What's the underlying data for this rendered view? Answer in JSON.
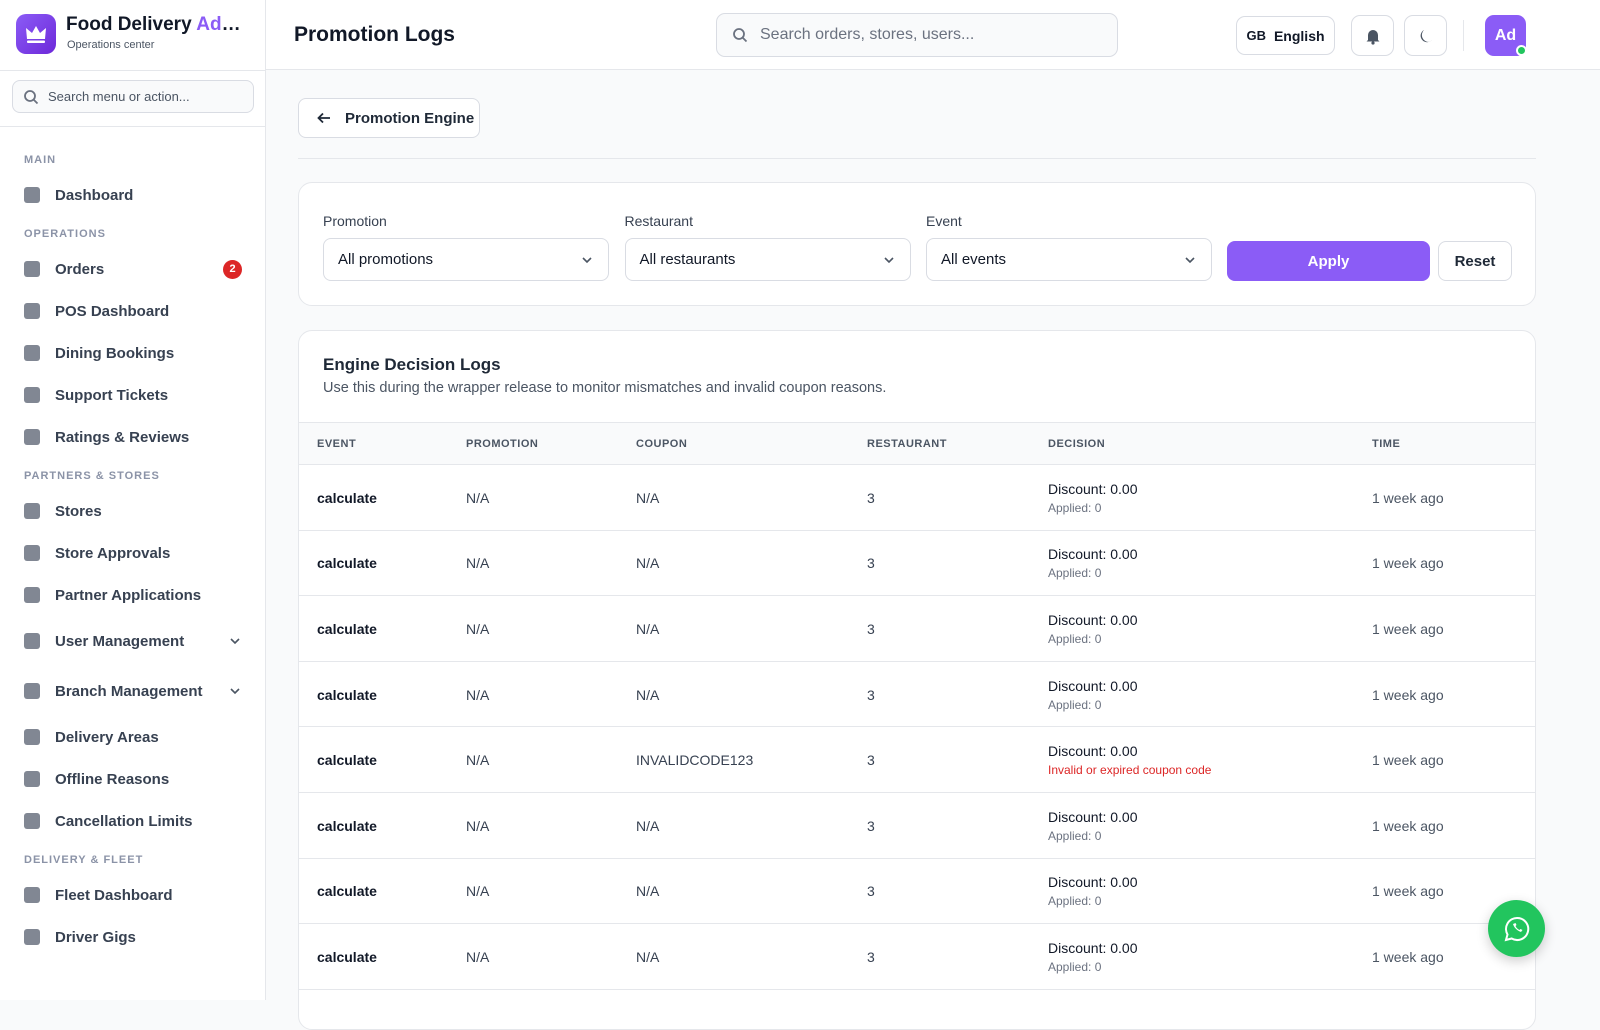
{
  "sidebar": {
    "brand": {
      "title": "Food Delivery",
      "title_accent": "Admin",
      "subtitle": "Operations center"
    },
    "search_placeholder": "Search menu or action...",
    "sections": [
      {
        "label": "MAIN",
        "items": [
          {
            "label": "Dashboard"
          }
        ]
      },
      {
        "label": "OPERATIONS",
        "items": [
          {
            "label": "Orders",
            "badge": 2
          },
          {
            "label": "POS Dashboard"
          },
          {
            "label": "Dining Bookings"
          },
          {
            "label": "Support Tickets"
          },
          {
            "label": "Ratings & Reviews"
          }
        ]
      },
      {
        "label": "PARTNERS & STORES",
        "items": [
          {
            "label": "Stores"
          },
          {
            "label": "Store Approvals"
          },
          {
            "label": "Partner Applications"
          },
          {
            "label": "User Management",
            "expandable": true
          },
          {
            "label": "Branch Management",
            "expandable": true
          },
          {
            "label": "Delivery Areas"
          },
          {
            "label": "Offline Reasons"
          },
          {
            "label": "Cancellation Limits"
          }
        ]
      },
      {
        "label": "DELIVERY & FLEET",
        "items": [
          {
            "label": "Fleet Dashboard"
          },
          {
            "label": "Driver Gigs"
          }
        ]
      }
    ]
  },
  "header": {
    "title": "Promotion Logs",
    "search_placeholder": "Search orders, stores, users...",
    "language_code": "GB",
    "language": "English",
    "avatar": "Ad"
  },
  "back_button": "Promotion Engine",
  "filters": {
    "fields": [
      {
        "label": "Promotion",
        "value": "All promotions"
      },
      {
        "label": "Restaurant",
        "value": "All restaurants"
      },
      {
        "label": "Event",
        "value": "All events"
      }
    ],
    "apply": "Apply",
    "reset": "Reset"
  },
  "table": {
    "title": "Engine Decision Logs",
    "description": "Use this during the wrapper release to monitor mismatches and invalid coupon reasons.",
    "columns": [
      "EVENT",
      "PROMOTION",
      "COUPON",
      "RESTAURANT",
      "DECISION",
      "TIME"
    ],
    "rows": [
      {
        "event": "calculate",
        "promotion": "N/A",
        "coupon": "N/A",
        "restaurant": 3,
        "discount": "Discount: 0.00",
        "note": "Applied: 0",
        "time": "1 week ago"
      },
      {
        "event": "calculate",
        "promotion": "N/A",
        "coupon": "N/A",
        "restaurant": 3,
        "discount": "Discount: 0.00",
        "note": "Applied: 0",
        "time": "1 week ago"
      },
      {
        "event": "calculate",
        "promotion": "N/A",
        "coupon": "N/A",
        "restaurant": 3,
        "discount": "Discount: 0.00",
        "note": "Applied: 0",
        "time": "1 week ago"
      },
      {
        "event": "calculate",
        "promotion": "N/A",
        "coupon": "N/A",
        "restaurant": 3,
        "discount": "Discount: 0.00",
        "note": "Applied: 0",
        "time": "1 week ago"
      },
      {
        "event": "calculate",
        "promotion": "N/A",
        "coupon": "INVALIDCODE123",
        "restaurant": 3,
        "discount": "Discount: 0.00",
        "note": "Invalid or expired coupon code",
        "note_error": true,
        "time": "1 week ago"
      },
      {
        "event": "calculate",
        "promotion": "N/A",
        "coupon": "N/A",
        "restaurant": 3,
        "discount": "Discount: 0.00",
        "note": "Applied: 0",
        "time": "1 week ago"
      },
      {
        "event": "calculate",
        "promotion": "N/A",
        "coupon": "N/A",
        "restaurant": 3,
        "discount": "Discount: 0.00",
        "note": "Applied: 0",
        "time": "1 week ago"
      },
      {
        "event": "calculate",
        "promotion": "N/A",
        "coupon": "N/A",
        "restaurant": 3,
        "discount": "Discount: 0.00",
        "note": "Applied: 0",
        "time": "1 week ago"
      }
    ]
  }
}
